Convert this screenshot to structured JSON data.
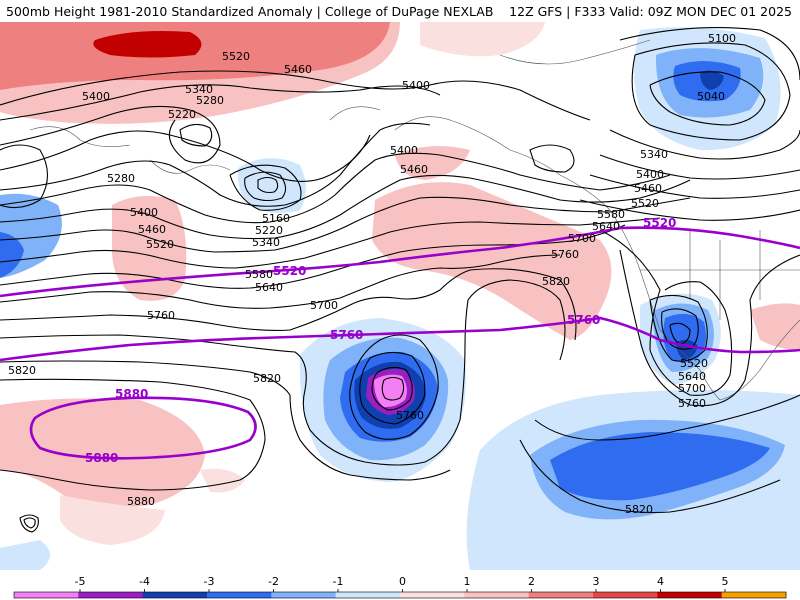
{
  "header": {
    "title_left": "500mb Height 1981-2010 Standardized Anomaly | College of DuPage NEXLAB",
    "title_right": "12Z GFS | F333 Valid: 09Z MON DEC 01 2025"
  },
  "colors": {
    "neg5": "#f280f2",
    "neg4": "#9a1fc2",
    "neg3": "#1040b0",
    "neg2": "#2f6cf0",
    "neg1": "#7fb2f8",
    "neg0": "#cfe6fc",
    "pos0": "#fbe0e0",
    "pos1": "#f8c2c2",
    "pos2": "#ef8080",
    "pos3": "#e54848",
    "pos4": "#c20000",
    "pos5": "#f4a000",
    "contour": "#000000",
    "mark_contour": "#9900cc"
  },
  "height_labels": {
    "l5520_nw": "5520",
    "l5460_nw": "5460",
    "l5400_w": "5400",
    "l5400_n": "5400",
    "l5340_w": "5340",
    "l5280_w": "5280",
    "l5220_w": "5220",
    "l5280_b": "5280",
    "l5400_b": "5400",
    "l5460_b": "5460",
    "l5520_b": "5520",
    "l5160": "5160",
    "l5220_c": "5220",
    "l5340_c": "5340",
    "l5580_c": "5580",
    "l5640_c": "5640",
    "l5700_c": "5700",
    "l5760_w": "5760",
    "l5820_w": "5820",
    "l5820_c": "5820",
    "l5880_s": "5880",
    "l5760_low": "5760",
    "l5400_ak": "5400",
    "l5460_ak": "5460",
    "l5760_n": "5760",
    "l5820_n": "5820",
    "l5700_n": "5700",
    "l5640_n": "5640",
    "l5580_n": "5580",
    "l5520_e": "5520",
    "l5460_e": "5460",
    "l5400_e": "5400",
    "l5340_e": "5340",
    "l5100_ne": "5100",
    "l5040_ne": "5040",
    "l5520_us": "5520",
    "l5640_us": "5640",
    "l5700_us": "5700",
    "l5760_us": "5760",
    "l5820_se": "5820"
  },
  "marked_labels": {
    "m5520_w": "5520",
    "m5520_e": "5520",
    "m5760_c": "5760",
    "m5760_e": "5760",
    "m5880_n": "5880",
    "m5880_s": "5880"
  },
  "colorbar": {
    "ticks": [
      "-5",
      "-4",
      "-3",
      "-2",
      "-1",
      "0",
      "1",
      "2",
      "3",
      "4",
      "5"
    ]
  }
}
